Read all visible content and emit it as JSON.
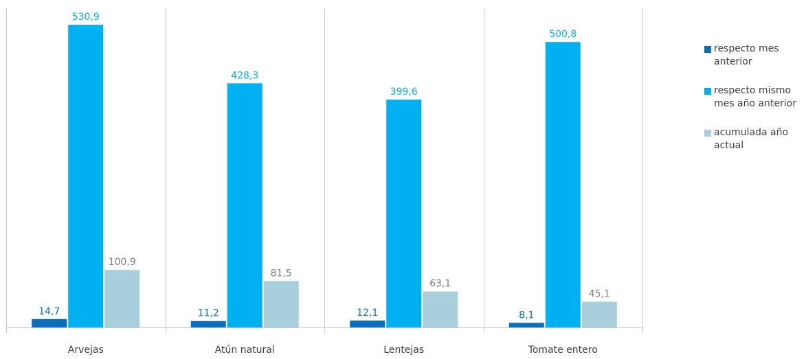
{
  "chart_data": {
    "type": "bar",
    "categories": [
      "Arvejas",
      "Atún natural",
      "Lentejas",
      "Tomate entero"
    ],
    "series": [
      {
        "name": "respecto mes anterior",
        "color": "#0a6ebd",
        "values": [
          14.7,
          11.2,
          12.1,
          8.1
        ],
        "labels": [
          "14,7",
          "11,2",
          "12,1",
          "8,1"
        ]
      },
      {
        "name": "respecto mismo mes año anterior",
        "color": "#00b0f0",
        "values": [
          530.9,
          428.3,
          399.6,
          500.8
        ],
        "labels": [
          "530,9",
          "428,3",
          "399,6",
          "500,8"
        ]
      },
      {
        "name": "acumulada año actual",
        "color": "#a9cfdc",
        "values": [
          100.9,
          81.5,
          63.1,
          45.1
        ],
        "labels": [
          "100,9",
          "81,5",
          "63,1",
          "45,1"
        ],
        "label_color": "#7f7f7f"
      }
    ],
    "ylim": [
      0,
      560
    ],
    "legend_position": "right",
    "grid": false,
    "category_separators": true
  }
}
